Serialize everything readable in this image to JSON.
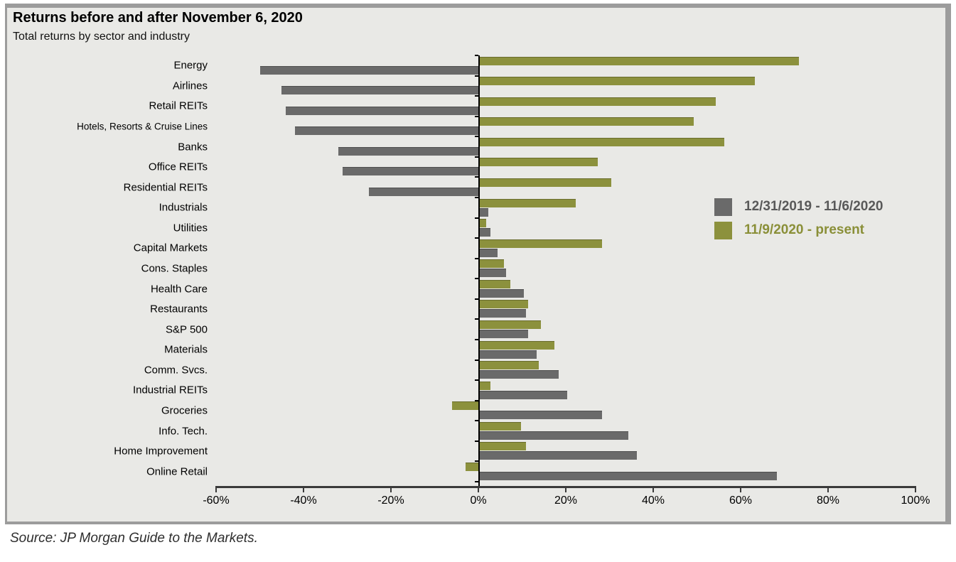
{
  "panel": {
    "background": "#e9e9e6",
    "border_color": "#9c9c9c"
  },
  "source": "Source: JP Morgan Guide to the Markets.",
  "chart_data": {
    "type": "bar",
    "orientation": "horizontal",
    "title": "Returns before and after November 6, 2020",
    "subtitle": "Total returns by sector and industry",
    "xlabel": "",
    "ylabel": "",
    "xlim": [
      -60,
      100
    ],
    "x_tick_labels": [
      "-60%",
      "-40%",
      "-20%",
      "0%",
      "20%",
      "40%",
      "60%",
      "80%",
      "100%"
    ],
    "x_tick_values": [
      -60,
      -40,
      -20,
      0,
      20,
      40,
      60,
      80,
      100
    ],
    "grid": false,
    "legend_position": "right-middle",
    "categories": [
      "Energy",
      "Airlines",
      "Retail REITs",
      "Hotels, Resorts & Cruise Lines",
      "Banks",
      "Office REITs",
      "Residential REITs",
      "Industrials",
      "Utilities",
      "Capital Markets",
      "Cons. Staples",
      "Health Care",
      "Restaurants",
      "S&P 500",
      "Materials",
      "Comm. Svcs.",
      "Industrial REITs",
      "Groceries",
      "Info. Tech.",
      "Home Improvement",
      "Online Retail"
    ],
    "series": [
      {
        "name": "12/31/2019 - 11/6/2020",
        "color": "#6a6a6a",
        "label_color": "#595959",
        "values": [
          -50,
          -45,
          -44,
          -42,
          -32,
          -31,
          -25,
          2,
          2.5,
          4,
          6,
          10,
          10.5,
          11,
          13,
          18,
          20,
          28,
          34,
          36,
          68
        ]
      },
      {
        "name": "11/9/2020 - present",
        "color": "#8c913d",
        "label_color": "#8a8f38",
        "values": [
          73,
          63,
          54,
          49,
          56,
          27,
          30,
          22,
          1.5,
          28,
          5.5,
          7,
          11,
          14,
          17,
          13.5,
          2.5,
          -6,
          9.5,
          10.5,
          -3
        ]
      }
    ]
  }
}
